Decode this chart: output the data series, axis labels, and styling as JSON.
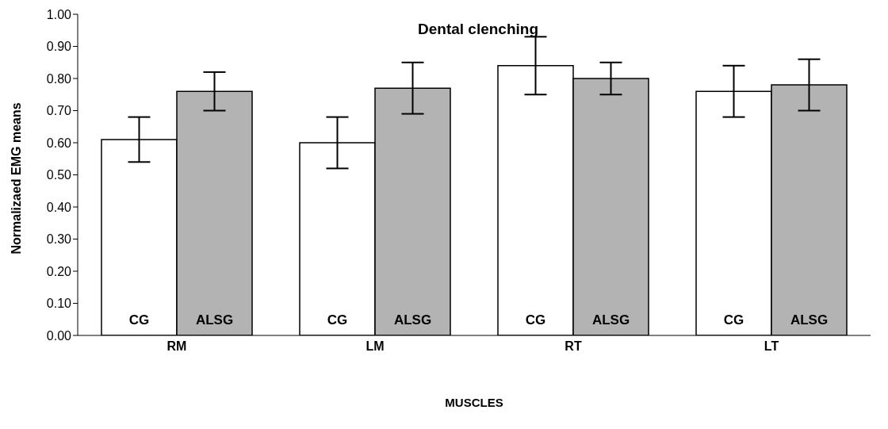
{
  "chart_data": {
    "type": "bar",
    "title": "Dental clenching",
    "xlabel": "MUSCLES",
    "ylabel": "Normalizaed EMG means",
    "categories": [
      "RM",
      "LM",
      "RT",
      "LT"
    ],
    "series": [
      {
        "name": "CG",
        "color": "#ffffff",
        "values": [
          0.61,
          0.6,
          0.84,
          0.76
        ],
        "errors": [
          0.07,
          0.08,
          0.09,
          0.08
        ]
      },
      {
        "name": "ALSG",
        "color": "#b3b3b3",
        "values": [
          0.76,
          0.77,
          0.8,
          0.78
        ],
        "errors": [
          0.06,
          0.08,
          0.05,
          0.08
        ]
      }
    ],
    "ylim": [
      0,
      1
    ],
    "yticks": [
      {
        "value": 0,
        "label": "0.00"
      },
      {
        "value": 0.1,
        "label": "0.10"
      },
      {
        "value": 0.2,
        "label": "0.20"
      },
      {
        "value": 0.3,
        "label": "0.30"
      },
      {
        "value": 0.4,
        "label": "0.40"
      },
      {
        "value": 0.5,
        "label": "0.50"
      },
      {
        "value": 0.6,
        "label": "0.60"
      },
      {
        "value": 0.7,
        "label": "0.70"
      },
      {
        "value": 0.8,
        "label": "0.80"
      },
      {
        "value": 0.9,
        "label": "0.90"
      },
      {
        "value": 1,
        "label": "1.00"
      }
    ],
    "grid": false,
    "legend": false
  }
}
